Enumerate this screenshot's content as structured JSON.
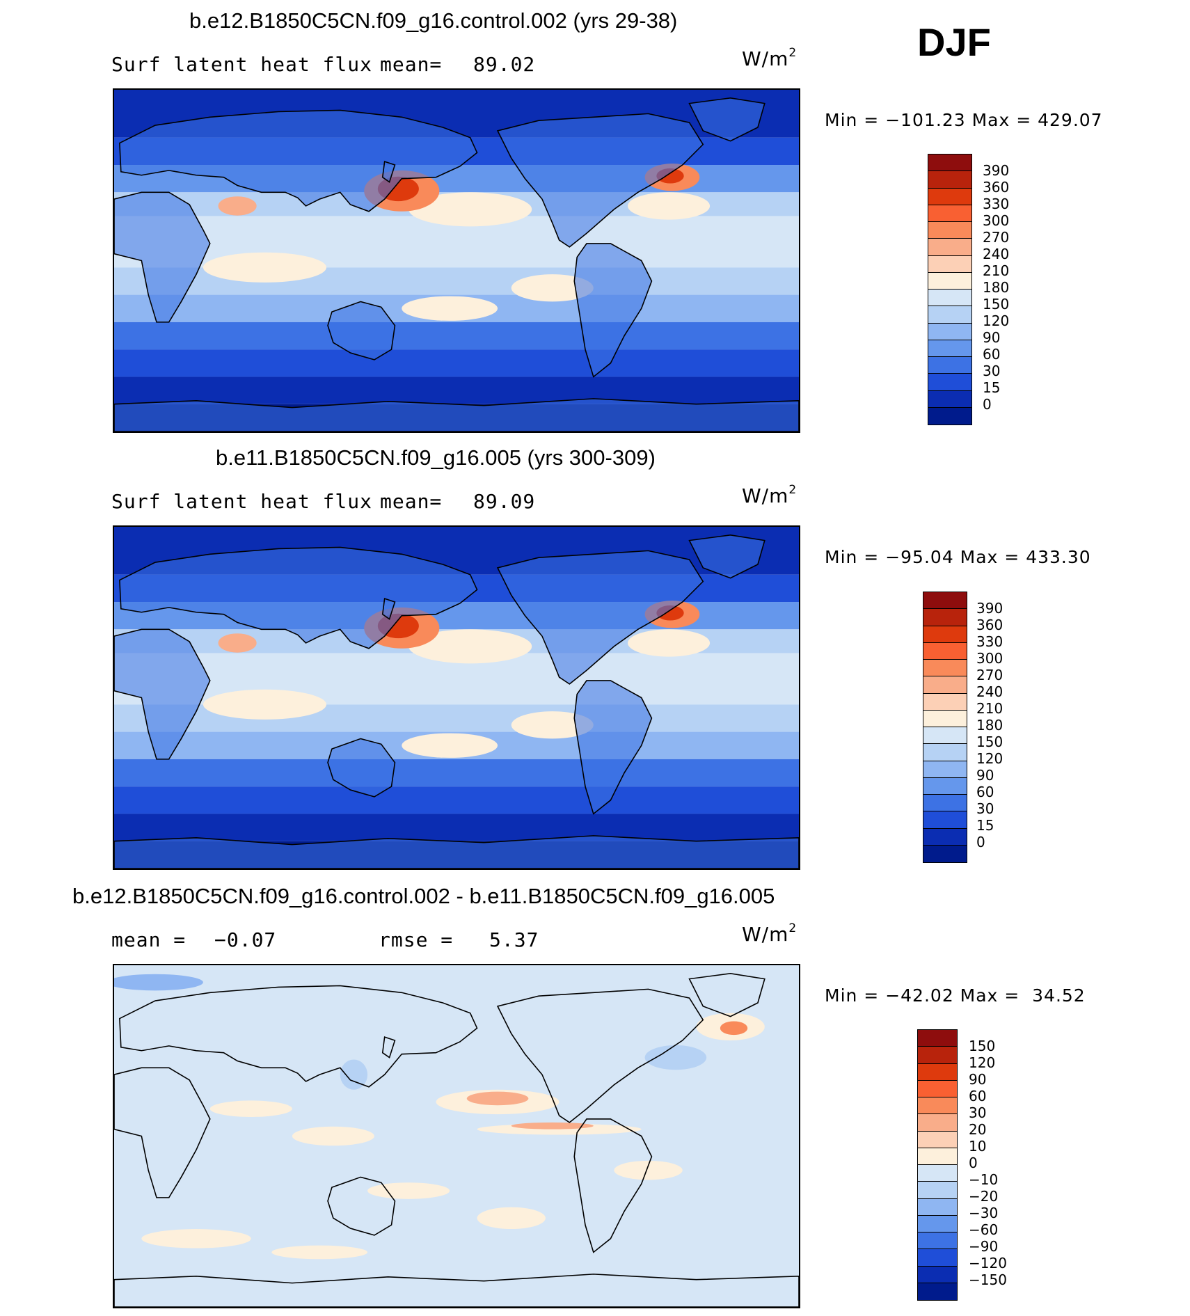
{
  "season": "DJF",
  "panels": [
    {
      "title": "b.e12.B1850C5CN.f09_g16.control.002 (yrs 29-38)",
      "left_text": "Surf latent heat flux",
      "stat1_label": "mean=",
      "stat1_value": "89.02",
      "stat2_label": "",
      "stat2_value": "",
      "units_base": "W/m",
      "units_exp": "2",
      "minmax": "Min = −101.23 Max = 429.07",
      "colorbar_labels": [
        "390",
        "360",
        "330",
        "300",
        "270",
        "240",
        "210",
        "180",
        "150",
        "120",
        "90",
        "60",
        "30",
        "15",
        "0"
      ],
      "colorbar_colors": [
        "#8e0d0d",
        "#b8230c",
        "#de3a0d",
        "#f96032",
        "#f98a5a",
        "#f9ad8a",
        "#fcd0b6",
        "#fdf0dc",
        "#d6e6f6",
        "#b6d2f4",
        "#8fb6f2",
        "#6597ec",
        "#3d72e4",
        "#1f4ed8",
        "#0b2db2",
        "#001b8c"
      ],
      "map_style": "abs"
    },
    {
      "title": "b.e11.B1850C5CN.f09_g16.005 (yrs 300-309)",
      "left_text": "Surf latent heat flux",
      "stat1_label": "mean=",
      "stat1_value": "89.09",
      "stat2_label": "",
      "stat2_value": "",
      "units_base": "W/m",
      "units_exp": "2",
      "minmax": "Min = −95.04 Max = 433.30",
      "colorbar_labels": [
        "390",
        "360",
        "330",
        "300",
        "270",
        "240",
        "210",
        "180",
        "150",
        "120",
        "90",
        "60",
        "30",
        "15",
        "0"
      ],
      "colorbar_colors": [
        "#8e0d0d",
        "#b8230c",
        "#de3a0d",
        "#f96032",
        "#f98a5a",
        "#f9ad8a",
        "#fcd0b6",
        "#fdf0dc",
        "#d6e6f6",
        "#b6d2f4",
        "#8fb6f2",
        "#6597ec",
        "#3d72e4",
        "#1f4ed8",
        "#0b2db2",
        "#001b8c"
      ],
      "map_style": "abs"
    },
    {
      "title": "b.e12.B1850C5CN.f09_g16.control.002 - b.e11.B1850C5CN.f09_g16.005",
      "left_text": "mean =",
      "stat1_label": "",
      "stat1_value": "−0.07",
      "stat2_label": "rmse =",
      "stat2_value": "5.37",
      "units_base": "W/m",
      "units_exp": "2",
      "minmax": "Min = −42.02 Max =  34.52",
      "colorbar_labels": [
        "150",
        "120",
        "90",
        "60",
        "30",
        "20",
        "10",
        "0",
        "−10",
        "−20",
        "−30",
        "−60",
        "−90",
        "−120",
        "−150"
      ],
      "colorbar_colors": [
        "#8e0d0d",
        "#b8230c",
        "#de3a0d",
        "#f96032",
        "#f98a5a",
        "#f9ad8a",
        "#fcd0b6",
        "#fdf0dc",
        "#d6e6f6",
        "#b6d2f4",
        "#8fb6f2",
        "#6597ec",
        "#3d72e4",
        "#1f4ed8",
        "#0b2db2",
        "#001b8c"
      ],
      "map_style": "diff"
    }
  ],
  "chart_data": [
    {
      "type": "heatmap",
      "title": "b.e12.B1850C5CN.f09_g16.control.002 (yrs 29-38)",
      "variable": "Surf latent heat flux",
      "units": "W/m2",
      "season": "DJF",
      "mean": 89.02,
      "min": -101.23,
      "max": 429.07,
      "contour_levels": [
        0,
        15,
        30,
        60,
        90,
        120,
        150,
        180,
        210,
        240,
        270,
        300,
        330,
        360,
        390
      ]
    },
    {
      "type": "heatmap",
      "title": "b.e11.B1850C5CN.f09_g16.005 (yrs 300-309)",
      "variable": "Surf latent heat flux",
      "units": "W/m2",
      "season": "DJF",
      "mean": 89.09,
      "min": -95.04,
      "max": 433.3,
      "contour_levels": [
        0,
        15,
        30,
        60,
        90,
        120,
        150,
        180,
        210,
        240,
        270,
        300,
        330,
        360,
        390
      ]
    },
    {
      "type": "heatmap",
      "title": "b.e12.B1850C5CN.f09_g16.control.002 - b.e11.B1850C5CN.f09_g16.005",
      "units": "W/m2",
      "season": "DJF",
      "mean": -0.07,
      "rmse": 5.37,
      "min": -42.02,
      "max": 34.52,
      "contour_levels": [
        -150,
        -120,
        -90,
        -60,
        -30,
        -20,
        -10,
        0,
        10,
        20,
        30,
        60,
        90,
        120,
        150
      ]
    }
  ]
}
